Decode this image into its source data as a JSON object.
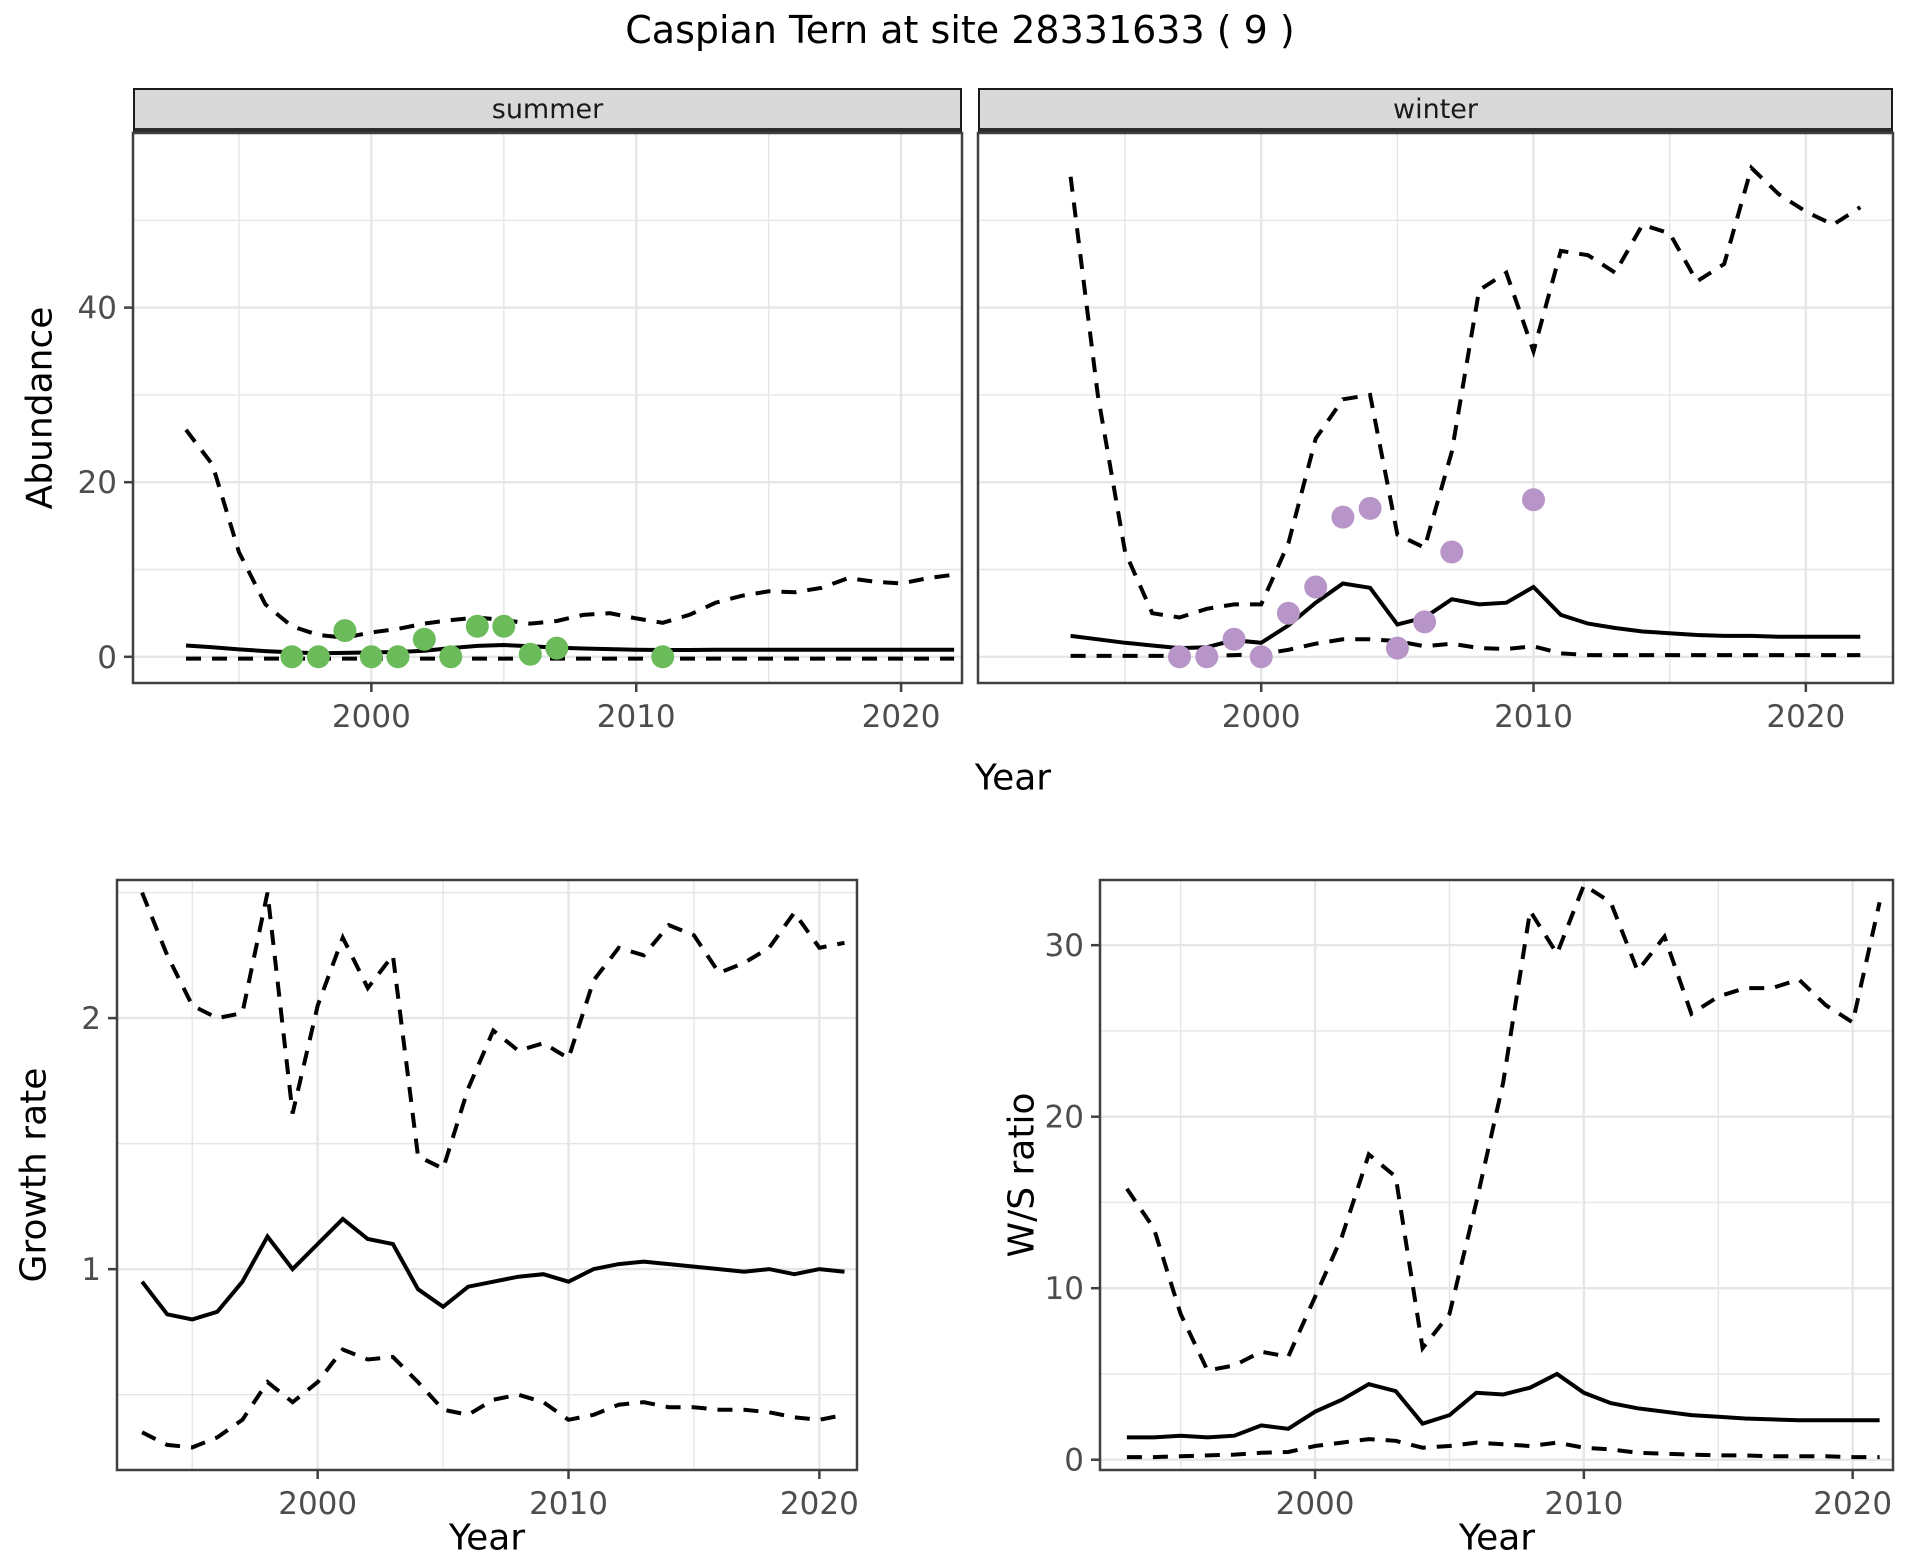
{
  "title": "Caspian Tern at site 28331633 ( 9 )",
  "axes": {
    "x_label": "Year",
    "abundance_label": "Abundance",
    "growth_label": "Growth rate",
    "ws_label": "W/S ratio"
  },
  "colors": {
    "summer_points": "#6CBB5A",
    "winter_points": "#B795C8",
    "line": "#000000",
    "grid": "#E6E6E6",
    "panel_border": "#404040",
    "strip_bg": "#D9D9D9",
    "tick_text": "#4D4D4D"
  },
  "chart_data": [
    {
      "id": "abundance-summer",
      "type": "line",
      "facet": "summer",
      "xlabel": "Year",
      "ylabel": "Abundance",
      "xlim": [
        1991,
        2022.3
      ],
      "ylim": [
        -3,
        60
      ],
      "x_ticks": [
        2000,
        2010,
        2020
      ],
      "x_minor": [
        1995,
        2005,
        2015
      ],
      "y_ticks": [
        0,
        20,
        40
      ],
      "y_minor": [
        10,
        30,
        50
      ],
      "show_y_tick_labels": true,
      "x": [
        1993,
        1994,
        1995,
        1996,
        1997,
        1998,
        1999,
        2000,
        2001,
        2002,
        2003,
        2004,
        2005,
        2006,
        2007,
        2008,
        2009,
        2010,
        2011,
        2012,
        2013,
        2014,
        2015,
        2016,
        2017,
        2018,
        2019,
        2020,
        2021,
        2022
      ],
      "series": [
        {
          "name": "upper_ci",
          "style": "dashed",
          "values": [
            26,
            22,
            12,
            6,
            3.5,
            2.5,
            2.2,
            2.8,
            3.2,
            3.8,
            4.2,
            4.5,
            4.2,
            3.8,
            4.1,
            4.8,
            5,
            4.4,
            3.9,
            4.8,
            6.2,
            7,
            7.5,
            7.4,
            7.9,
            9,
            8.6,
            8.4,
            9,
            9.4
          ]
        },
        {
          "name": "median",
          "style": "solid",
          "values": [
            1.3,
            1.1,
            0.85,
            0.65,
            0.5,
            0.4,
            0.45,
            0.5,
            0.55,
            0.7,
            1.0,
            1.25,
            1.35,
            1.2,
            1.05,
            0.95,
            0.88,
            0.8,
            0.78,
            0.78,
            0.8,
            0.8,
            0.8,
            0.8,
            0.8,
            0.8,
            0.8,
            0.8,
            0.8,
            0.8
          ]
        },
        {
          "name": "lower_ci",
          "style": "dashed",
          "values": [
            -0.2,
            -0.2,
            -0.2,
            -0.2,
            -0.2,
            -0.2,
            -0.2,
            -0.2,
            -0.2,
            -0.2,
            -0.2,
            -0.2,
            -0.2,
            -0.2,
            -0.2,
            -0.2,
            -0.2,
            -0.2,
            -0.2,
            -0.2,
            -0.2,
            -0.2,
            -0.2,
            -0.2,
            -0.2,
            -0.2,
            -0.2,
            -0.2,
            -0.2,
            -0.2
          ]
        }
      ],
      "points": {
        "color": "#6CBB5A",
        "data": [
          [
            1997,
            0
          ],
          [
            1998,
            0
          ],
          [
            1999,
            3
          ],
          [
            2000,
            0
          ],
          [
            2001,
            0
          ],
          [
            2002,
            2
          ],
          [
            2003,
            0
          ],
          [
            2004,
            3.5
          ],
          [
            2005,
            3.5
          ],
          [
            2006,
            0.3
          ],
          [
            2007,
            1
          ],
          [
            2011,
            0
          ]
        ]
      }
    },
    {
      "id": "abundance-winter",
      "type": "line",
      "facet": "winter",
      "xlabel": "Year",
      "ylabel": "Abundance",
      "xlim": [
        1989.6,
        2023.2
      ],
      "ylim": [
        -3,
        60
      ],
      "x_ticks": [
        2000,
        2010,
        2020
      ],
      "x_minor": [
        1995,
        2005,
        2015
      ],
      "y_ticks": [
        0,
        20,
        40
      ],
      "y_minor": [
        10,
        30,
        50
      ],
      "show_y_tick_labels": false,
      "x": [
        1993,
        1994,
        1995,
        1996,
        1997,
        1998,
        1999,
        2000,
        2001,
        2002,
        2003,
        2004,
        2005,
        2006,
        2007,
        2008,
        2009,
        2010,
        2011,
        2012,
        2013,
        2014,
        2015,
        2016,
        2017,
        2018,
        2019,
        2020,
        2021,
        2022
      ],
      "series": [
        {
          "name": "upper_ci",
          "style": "dashed",
          "values": [
            55,
            30,
            12,
            5,
            4.5,
            5.5,
            6,
            6,
            13,
            25,
            29.5,
            30,
            14,
            12.5,
            23.5,
            42,
            44,
            35,
            46.5,
            46,
            44,
            49.5,
            48.5,
            43,
            45,
            56,
            53,
            51,
            49.5,
            51.5
          ]
        },
        {
          "name": "median",
          "style": "solid",
          "values": [
            2.4,
            2.0,
            1.6,
            1.3,
            1.0,
            1.1,
            1.9,
            1.6,
            3.6,
            6.2,
            8.4,
            7.9,
            3.7,
            4.5,
            6.6,
            6.0,
            6.2,
            8.0,
            4.8,
            3.8,
            3.3,
            2.9,
            2.7,
            2.5,
            2.4,
            2.4,
            2.3,
            2.3,
            2.3,
            2.3
          ]
        },
        {
          "name": "lower_ci",
          "style": "dashed",
          "values": [
            0.1,
            0.1,
            0.1,
            0.1,
            0.1,
            0.1,
            0.2,
            0.3,
            0.8,
            1.5,
            2.0,
            2.0,
            1.8,
            1.2,
            1.5,
            1.0,
            0.9,
            1.2,
            0.4,
            0.2,
            0.2,
            0.2,
            0.2,
            0.2,
            0.2,
            0.2,
            0.2,
            0.2,
            0.2,
            0.2
          ]
        }
      ],
      "points": {
        "color": "#B795C8",
        "data": [
          [
            1997,
            0
          ],
          [
            1998,
            0
          ],
          [
            1999,
            2
          ],
          [
            2000,
            0
          ],
          [
            2001,
            5
          ],
          [
            2002,
            8
          ],
          [
            2003,
            16
          ],
          [
            2004,
            17
          ],
          [
            2005,
            1
          ],
          [
            2006,
            4
          ],
          [
            2007,
            12
          ],
          [
            2010,
            18
          ]
        ]
      }
    },
    {
      "id": "growth-rate",
      "type": "line",
      "facet": null,
      "xlabel": "Year",
      "ylabel": "Growth rate",
      "xlim": [
        1992,
        2021.5
      ],
      "ylim": [
        0.2,
        2.55
      ],
      "x_ticks": [
        2000,
        2010,
        2020
      ],
      "x_minor": [
        1995,
        2005,
        2015
      ],
      "y_ticks": [
        1,
        2
      ],
      "y_minor": [
        0.5,
        1.5,
        2.5
      ],
      "show_y_tick_labels": true,
      "x": [
        1993,
        1994,
        1995,
        1996,
        1997,
        1998,
        1999,
        2000,
        2001,
        2002,
        2003,
        2004,
        2005,
        2006,
        2007,
        2008,
        2009,
        2010,
        2011,
        2012,
        2013,
        2014,
        2015,
        2016,
        2017,
        2018,
        2019,
        2020,
        2021
      ],
      "series": [
        {
          "name": "upper_ci",
          "style": "dashed",
          "values": [
            2.5,
            2.25,
            2.05,
            2.0,
            2.02,
            2.5,
            1.62,
            2.05,
            2.32,
            2.12,
            2.25,
            1.45,
            1.4,
            1.72,
            1.95,
            1.87,
            1.9,
            1.84,
            2.15,
            2.28,
            2.25,
            2.37,
            2.33,
            2.18,
            2.22,
            2.28,
            2.42,
            2.28,
            2.3
          ]
        },
        {
          "name": "median",
          "style": "solid",
          "values": [
            0.95,
            0.82,
            0.8,
            0.83,
            0.95,
            1.13,
            1.0,
            1.1,
            1.2,
            1.12,
            1.1,
            0.92,
            0.85,
            0.93,
            0.95,
            0.97,
            0.98,
            0.95,
            1.0,
            1.02,
            1.03,
            1.02,
            1.01,
            1.0,
            0.99,
            1.0,
            0.98,
            1.0,
            0.99
          ]
        },
        {
          "name": "lower_ci",
          "style": "dashed",
          "values": [
            0.35,
            0.3,
            0.29,
            0.33,
            0.4,
            0.55,
            0.47,
            0.55,
            0.68,
            0.64,
            0.65,
            0.55,
            0.44,
            0.42,
            0.48,
            0.5,
            0.47,
            0.4,
            0.42,
            0.46,
            0.47,
            0.45,
            0.45,
            0.44,
            0.44,
            0.43,
            0.41,
            0.4,
            0.42
          ]
        }
      ],
      "points": null
    },
    {
      "id": "ws-ratio",
      "type": "line",
      "facet": null,
      "xlabel": "Year",
      "ylabel": "W/S ratio",
      "xlim": [
        1992,
        2021.5
      ],
      "ylim": [
        -0.6,
        33.8
      ],
      "x_ticks": [
        2000,
        2010,
        2020
      ],
      "x_minor": [
        1995,
        2005,
        2015
      ],
      "y_ticks": [
        0,
        10,
        20,
        30
      ],
      "y_minor": [
        5,
        15,
        25
      ],
      "show_y_tick_labels": true,
      "x": [
        1993,
        1994,
        1995,
        1996,
        1997,
        1998,
        1999,
        2000,
        2001,
        2002,
        2003,
        2004,
        2005,
        2006,
        2007,
        2008,
        2009,
        2010,
        2011,
        2012,
        2013,
        2014,
        2015,
        2016,
        2017,
        2018,
        2019,
        2020,
        2021
      ],
      "series": [
        {
          "name": "upper_ci",
          "style": "dashed",
          "values": [
            15.8,
            13.5,
            8.5,
            5.2,
            5.5,
            6.3,
            6.0,
            9.5,
            13,
            17.8,
            16.5,
            6.5,
            8.5,
            15,
            22,
            32,
            29.5,
            33.5,
            32.5,
            28.5,
            30.5,
            26,
            27,
            27.5,
            27.5,
            28,
            26.5,
            25.5,
            32.5
          ]
        },
        {
          "name": "median",
          "style": "solid",
          "values": [
            1.3,
            1.3,
            1.4,
            1.3,
            1.4,
            2.0,
            1.8,
            2.8,
            3.5,
            4.4,
            4.0,
            2.1,
            2.6,
            3.9,
            3.8,
            4.2,
            5.0,
            3.9,
            3.3,
            3.0,
            2.8,
            2.6,
            2.5,
            2.4,
            2.35,
            2.3,
            2.3,
            2.3,
            2.3
          ]
        },
        {
          "name": "lower_ci",
          "style": "dashed",
          "values": [
            0.15,
            0.15,
            0.2,
            0.25,
            0.3,
            0.4,
            0.45,
            0.8,
            1.0,
            1.2,
            1.1,
            0.7,
            0.8,
            1.0,
            0.9,
            0.8,
            1.0,
            0.7,
            0.6,
            0.4,
            0.35,
            0.3,
            0.25,
            0.25,
            0.2,
            0.2,
            0.2,
            0.15,
            0.15
          ]
        }
      ],
      "points": null
    }
  ]
}
